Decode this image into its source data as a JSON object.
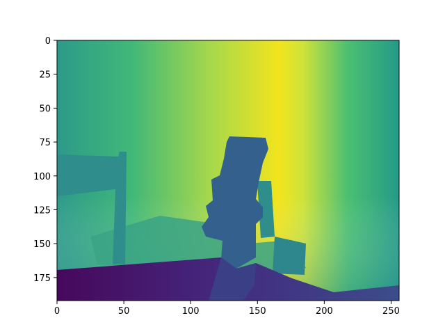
{
  "chart_data": {
    "type": "heatmap",
    "title": "",
    "xlabel": "",
    "ylabel": "",
    "colormap": "viridis",
    "image_size": [
      256,
      192
    ],
    "xlim": [
      0,
      256
    ],
    "ylim": [
      192,
      0
    ],
    "x_ticks": [
      0,
      50,
      100,
      150,
      200,
      250
    ],
    "y_ticks": [
      0,
      25,
      50,
      75,
      100,
      125,
      150,
      175
    ],
    "content": "depth map: yellow vertical band near x≈165–180, chair at left, robot arm in center, dark floor at bottom"
  }
}
